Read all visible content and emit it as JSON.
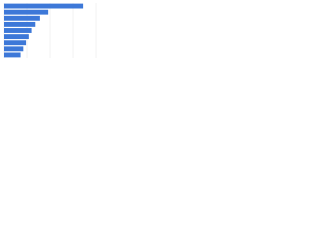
{
  "chart_data": {
    "type": "bar",
    "orientation": "horizontal",
    "categories": [
      null,
      null,
      null,
      null,
      null,
      null,
      null,
      null,
      null
    ],
    "values": [
      86,
      48,
      39,
      34,
      30,
      27,
      24,
      21,
      18
    ],
    "color": "#3d78d8",
    "xlim": [
      0,
      100
    ],
    "xticks": [
      0,
      25,
      50,
      75,
      100
    ],
    "grid": true
  }
}
